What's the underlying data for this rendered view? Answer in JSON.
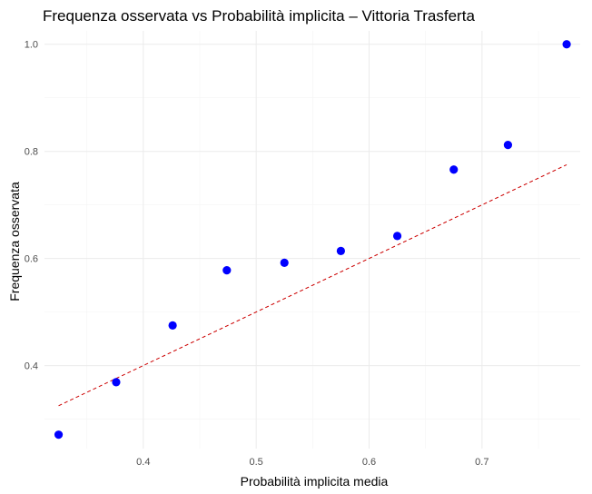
{
  "chart_data": {
    "type": "scatter",
    "title": "Frequenza osservata vs Probabilità implicita – Vittoria Trasferta",
    "xlabel": "Probabilità implicita media",
    "ylabel": "Frequenza osservata",
    "xlim": [
      0.3125,
      0.787
    ],
    "ylim": [
      0.245,
      1.025
    ],
    "x_ticks": [
      0.4,
      0.5,
      0.6,
      0.7
    ],
    "x_tick_labels": [
      "0.4",
      "0.5",
      "0.6",
      "0.7"
    ],
    "y_ticks": [
      0.4,
      0.6,
      0.8,
      1.0
    ],
    "y_tick_labels": [
      "0.4",
      "0.6",
      "0.8",
      "1.0"
    ],
    "grid": true,
    "points": {
      "x": [
        0.325,
        0.376,
        0.426,
        0.474,
        0.525,
        0.575,
        0.625,
        0.675,
        0.723,
        0.775
      ],
      "y": [
        0.271,
        0.369,
        0.475,
        0.578,
        0.592,
        0.614,
        0.642,
        0.766,
        0.812,
        1.0
      ],
      "color": "#0000ff"
    },
    "reference_line": {
      "x": [
        0.325,
        0.775
      ],
      "y": [
        0.325,
        0.775
      ],
      "color": "#cc0000",
      "style": "dashed"
    }
  }
}
